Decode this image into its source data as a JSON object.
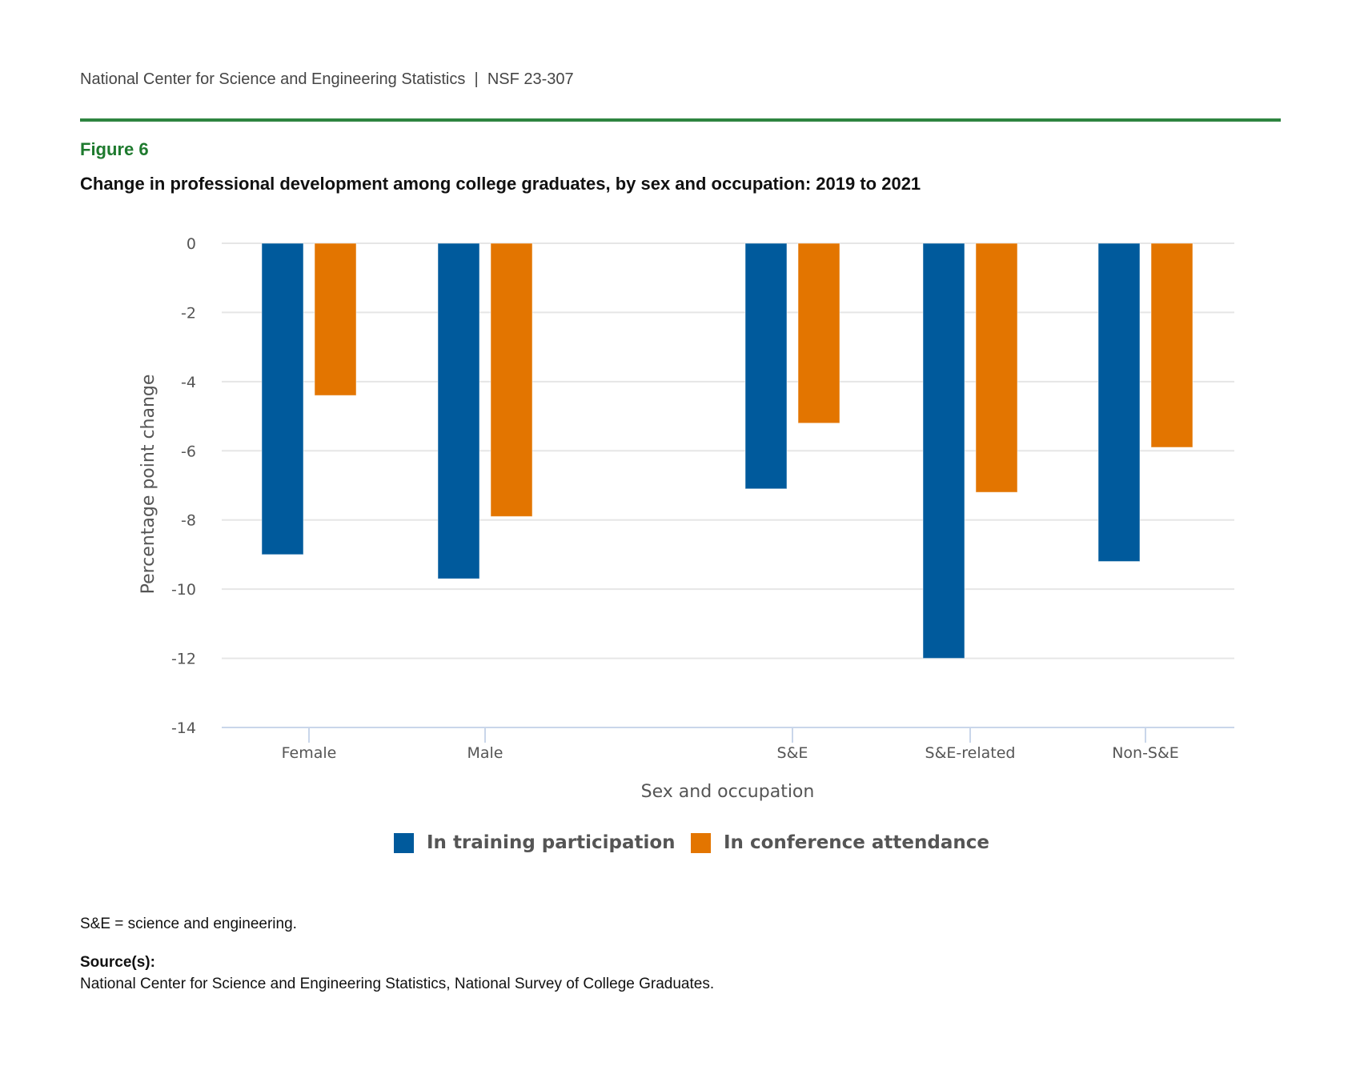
{
  "header": {
    "org": "National Center for Science and Engineering Statistics",
    "separator": "|",
    "report_id": "NSF 23-307",
    "rule_color": "#2e8540"
  },
  "figure": {
    "label": "Figure 6",
    "label_color": "#1e7a2e",
    "title": "Change in professional development among college graduates, by sex and occupation: 2019 to 2021"
  },
  "chart_data": {
    "type": "bar",
    "title": "Change in professional development among college graduates, by sex and occupation: 2019 to 2021",
    "xlabel": "Sex and occupation",
    "ylabel": "Percentage point change",
    "categories": [
      "Female",
      "Male",
      "S&E",
      "S&E-related",
      "Non-S&E"
    ],
    "series": [
      {
        "name": "In training participation",
        "color": "#005a9c",
        "values": [
          -9.0,
          -9.7,
          -7.1,
          -12.0,
          -9.2
        ]
      },
      {
        "name": "In conference attendance",
        "color": "#e37500",
        "values": [
          -4.4,
          -7.9,
          -5.2,
          -7.2,
          -5.9
        ]
      }
    ],
    "ylim": [
      -14,
      0
    ],
    "yticks": [
      0,
      -2,
      -4,
      -6,
      -8,
      -10,
      -12,
      -14
    ],
    "ytick_labels": [
      "0",
      "-2",
      "-4",
      "-6",
      "-8",
      "-10",
      "-12",
      "-14"
    ],
    "grid": true,
    "legend_position": "bottom-center"
  },
  "legend": {
    "items": [
      {
        "label": "In training participation",
        "color": "#005a9c"
      },
      {
        "label": "In conference attendance",
        "color": "#e37500"
      }
    ]
  },
  "notes": {
    "footnote": "S&E = science and engineering.",
    "source_label": "Source(s):",
    "source_text": "National Center for Science and Engineering Statistics, National Survey of College Graduates."
  }
}
